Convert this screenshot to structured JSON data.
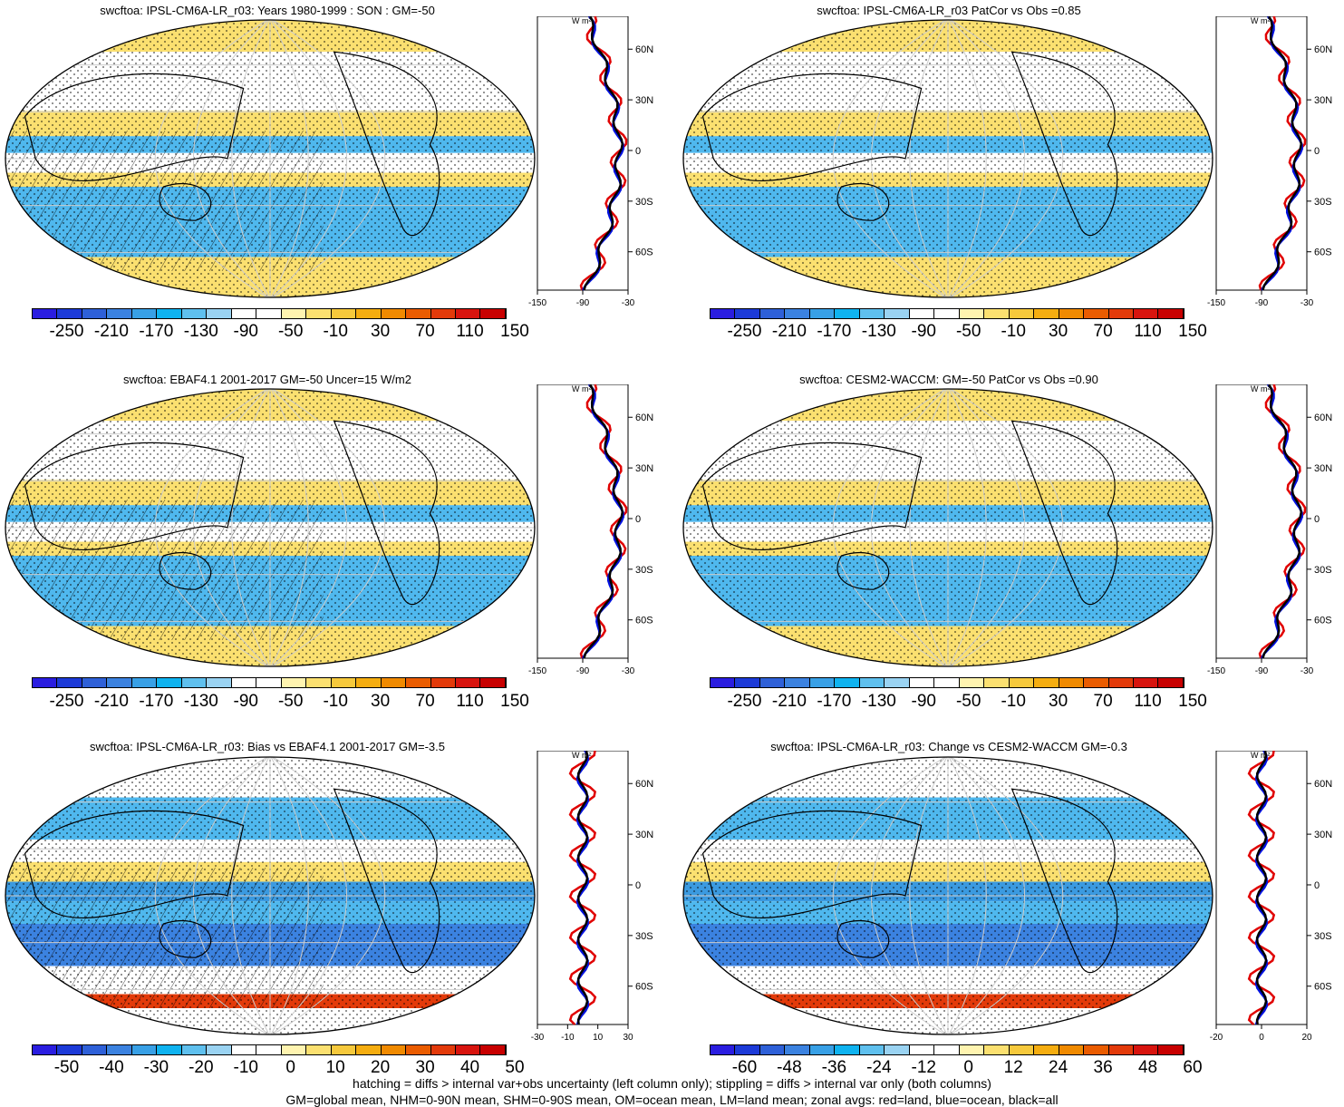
{
  "panels": [
    {
      "title": "swcftoa: IPSL-CM6A-LR_r03: Years 1980-1999 : SON : GM=-50",
      "cbar_labels": [
        "-250",
        "-210",
        "-170",
        "-130",
        "-90",
        "-50",
        "-10",
        "30",
        "70",
        "110",
        "150"
      ],
      "zonal_ticks": [
        "-150",
        "-90",
        "-30"
      ]
    },
    {
      "title": "swcftoa: IPSL-CM6A-LR_r03 PatCor vs Obs =0.85",
      "cbar_labels": [
        "-250",
        "-210",
        "-170",
        "-130",
        "-90",
        "-50",
        "-10",
        "30",
        "70",
        "110",
        "150"
      ],
      "zonal_ticks": [
        "-150",
        "-90",
        "-30"
      ]
    },
    {
      "title": "swcftoa: EBAF4.1 2001-2017 GM=-50 Uncer=15 W/m2",
      "cbar_labels": [
        "-250",
        "-210",
        "-170",
        "-130",
        "-90",
        "-50",
        "-10",
        "30",
        "70",
        "110",
        "150"
      ],
      "zonal_ticks": [
        "-150",
        "-90",
        "-30"
      ]
    },
    {
      "title": "swcftoa: CESM2-WACCM: GM=-50 PatCor vs Obs =0.90",
      "cbar_labels": [
        "-250",
        "-210",
        "-170",
        "-130",
        "-90",
        "-50",
        "-10",
        "30",
        "70",
        "110",
        "150"
      ],
      "zonal_ticks": [
        "-150",
        "-90",
        "-30"
      ]
    },
    {
      "title": "swcftoa: IPSL-CM6A-LR_r03: Bias vs EBAF4.1 2001-2017  GM=-3.5",
      "cbar_labels": [
        "-50",
        "-40",
        "-30",
        "-20",
        "-10",
        "0",
        "10",
        "20",
        "30",
        "40",
        "50"
      ],
      "zonal_ticks": [
        "-30",
        "-10",
        "10",
        "30"
      ]
    },
    {
      "title": "swcftoa: IPSL-CM6A-LR_r03: Change vs CESM2-WACCM GM=-0.3",
      "cbar_labels": [
        "-60",
        "-48",
        "-36",
        "-24",
        "-12",
        "0",
        "12",
        "24",
        "36",
        "48",
        "60"
      ],
      "zonal_ticks": [
        "-20",
        "0",
        "20"
      ]
    }
  ],
  "lat_labels": [
    "60N",
    "30N",
    "0",
    "30S",
    "60S"
  ],
  "units": "W m²",
  "colorbar_colors": [
    "#2a1de0",
    "#1c3ad8",
    "#2e60d8",
    "#3b82e0",
    "#38a0e6",
    "#0fb3f0",
    "#5fc0ee",
    "#9ad3f2",
    "#ffffff",
    "#ffffff",
    "#fff4b0",
    "#fbe070",
    "#f6c93c",
    "#f5ad10",
    "#f08a00",
    "#ea5c00",
    "#e33a0a",
    "#d8140e",
    "#c80000"
  ],
  "footer": {
    "line1": "hatching = diffs > internal var+obs uncertainty (left column only); stippling = diffs > internal var only (both columns)",
    "line2": "GM=global mean, NHM=0-90N mean, SHM=0-90S mean, OM=ocean mean, LM=land mean; zonal avgs: red=land, blue=ocean, black=all"
  }
}
